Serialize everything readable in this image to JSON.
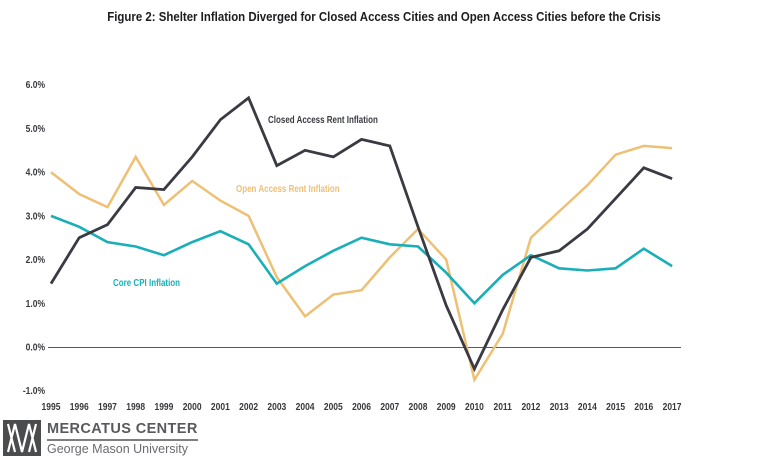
{
  "title": "Figure 2: Shelter Inflation Diverged for Closed Access Cities and Open Access Cities before the Crisis",
  "chart_data": {
    "type": "line",
    "x": [
      1995,
      1996,
      1997,
      1998,
      1999,
      2000,
      2001,
      2002,
      2003,
      2004,
      2005,
      2006,
      2007,
      2008,
      2009,
      2010,
      2011,
      2012,
      2013,
      2014,
      2015,
      2016,
      2017
    ],
    "x_tick_labels": [
      "1995",
      "1996",
      "1997",
      "1998",
      "1999",
      "2000",
      "2001",
      "2002",
      "2003",
      "2004",
      "2005",
      "2006",
      "2007",
      "2008",
      "2009",
      "2010",
      "2011",
      "2012",
      "2013",
      "2014",
      "2015",
      "2016",
      "2017"
    ],
    "y_ticks": [
      {
        "value": 6,
        "label": "6.0%"
      },
      {
        "value": 5,
        "label": "5.0%"
      },
      {
        "value": 4,
        "label": "4.0%"
      },
      {
        "value": 3,
        "label": "3.0%"
      },
      {
        "value": 2,
        "label": "2.0%"
      },
      {
        "value": 1,
        "label": "1.0%"
      },
      {
        "value": 0,
        "label": "0.0%"
      },
      {
        "value": -1,
        "label": "-1.0%"
      }
    ],
    "ylim": [
      -1.0,
      6.0
    ],
    "grid": false,
    "zero_line": true,
    "legend_position": "inline-labels",
    "series": [
      {
        "id": "open-access-rent-inflation",
        "name": "Open Access Rent Inflation",
        "color": "#eec074",
        "values": [
          4.0,
          3.5,
          3.2,
          4.35,
          3.25,
          3.8,
          3.35,
          3.0,
          1.6,
          0.7,
          1.2,
          1.3,
          2.05,
          2.7,
          2.0,
          -0.75,
          0.3,
          2.5,
          3.1,
          3.7,
          4.4,
          4.6,
          4.55
        ]
      },
      {
        "id": "core-cpi-inflation",
        "name": "Core CPI Inflation",
        "color": "#1aafb8",
        "values": [
          3.0,
          2.75,
          2.4,
          2.3,
          2.1,
          2.4,
          2.65,
          2.35,
          1.45,
          1.85,
          2.2,
          2.5,
          2.35,
          2.3,
          1.7,
          1.0,
          1.65,
          2.1,
          1.8,
          1.75,
          1.8,
          2.25,
          1.85
        ]
      },
      {
        "id": "closed-access-rent-inflation",
        "name": "Closed Access Rent Inflation",
        "color": "#3a3b42",
        "values": [
          1.45,
          2.5,
          2.8,
          3.65,
          3.6,
          4.35,
          5.2,
          5.7,
          4.15,
          4.5,
          4.35,
          4.75,
          4.6,
          2.75,
          0.95,
          -0.5,
          0.85,
          2.05,
          2.2,
          2.7,
          3.4,
          4.1,
          3.85
        ]
      }
    ]
  },
  "footer": {
    "org": "MERCATUS CENTER",
    "sub": "George Mason University"
  }
}
